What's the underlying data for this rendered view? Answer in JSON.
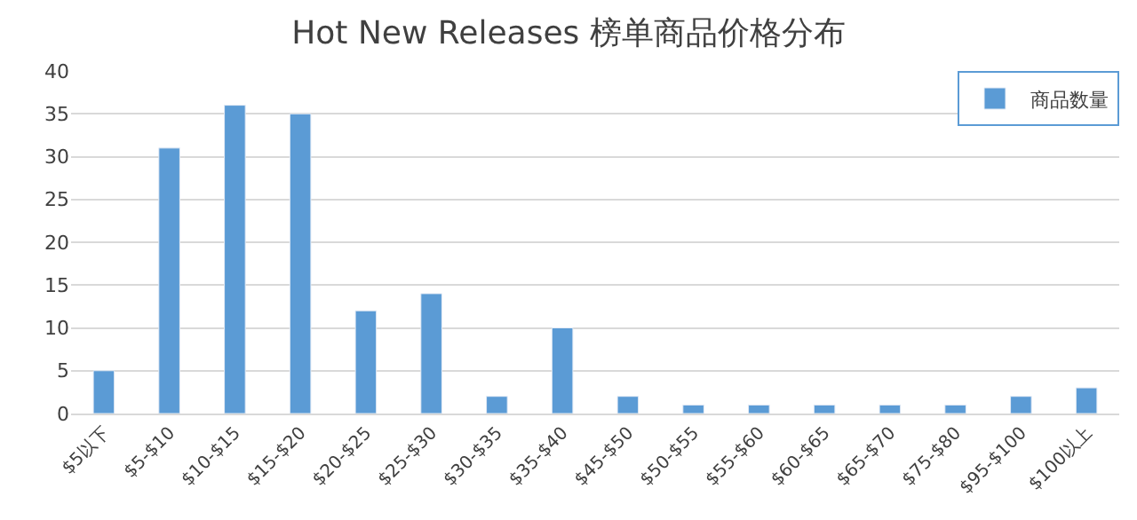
{
  "chart_data": {
    "type": "bar",
    "title": "Hot New Releases 榜单商品价格分布",
    "categories": [
      "$5以下",
      "$5-$10",
      "$10-$15",
      "$15-$20",
      "$20-$25",
      "$25-$30",
      "$30-$35",
      "$35-$40",
      "$45-$50",
      "$50-$55",
      "$55-$60",
      "$60-$65",
      "$65-$70",
      "$75-$80",
      "$95-$100",
      "$100以上"
    ],
    "series": [
      {
        "name": "商品数量",
        "color": "#5b9bd5",
        "values": [
          5,
          31,
          36,
          35,
          12,
          14,
          2,
          10,
          2,
          1,
          1,
          1,
          1,
          1,
          2,
          3
        ]
      }
    ],
    "ylim": [
      0,
      40
    ],
    "yticks": [
      0,
      5,
      10,
      15,
      20,
      25,
      30,
      35,
      40
    ],
    "grid": "y",
    "legend": "top right"
  }
}
